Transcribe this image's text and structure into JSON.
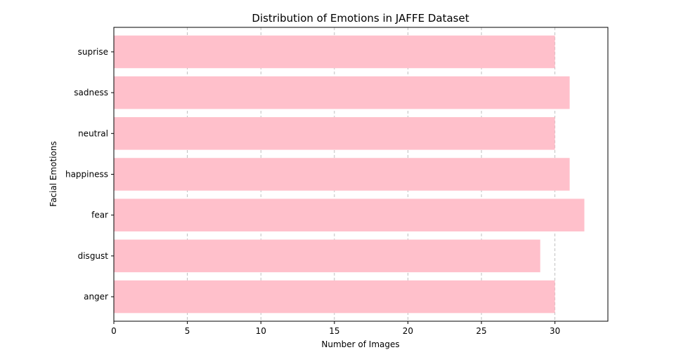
{
  "chart_data": {
    "type": "bar",
    "orientation": "horizontal",
    "title": "Distribution of Emotions in JAFFE Dataset",
    "xlabel": "Number of Images",
    "ylabel": "Facial Emotions",
    "categories": [
      "anger",
      "disgust",
      "fear",
      "happiness",
      "neutral",
      "sadness",
      "suprise"
    ],
    "values": [
      30,
      29,
      32,
      31,
      30,
      31,
      30
    ],
    "xlim": [
      0,
      33.6
    ],
    "xticks": [
      0,
      5,
      10,
      15,
      20,
      25,
      30
    ],
    "grid": "x-axis dashed",
    "bar_color": "#ffc0cb",
    "legend": "none"
  }
}
